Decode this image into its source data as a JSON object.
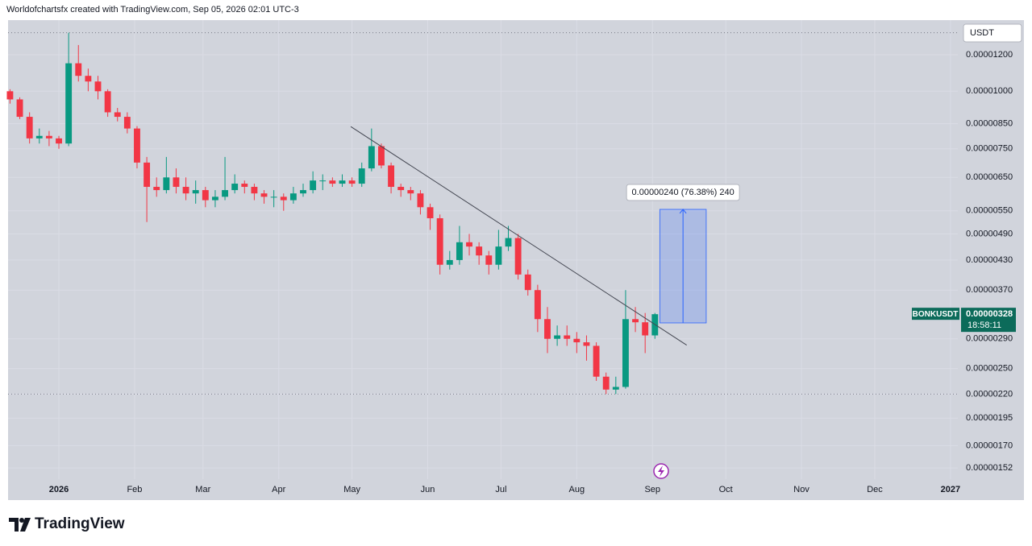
{
  "chart_data": {
    "type": "candlestick",
    "title": "Worldofchartsfx created with TradingView.com, Sep 05, 2026 02:01 UTC-3",
    "currency": "USDT",
    "brand": "TradingView",
    "log_scale": true,
    "grid": true,
    "up_color": "#089981",
    "down_color": "#f23645",
    "xlim": [
      -20.8,
      368
    ],
    "ylim": [
      1.3e-06,
      1.427e-05
    ],
    "xticks": [
      {
        "value": 0,
        "label": "2026"
      },
      {
        "value": 31,
        "label": "Feb"
      },
      {
        "value": 59,
        "label": "Mar"
      },
      {
        "value": 90,
        "label": "Apr"
      },
      {
        "value": 120,
        "label": "May"
      },
      {
        "value": 151,
        "label": "Jun"
      },
      {
        "value": 181,
        "label": "Jul"
      },
      {
        "value": 212,
        "label": "Aug"
      },
      {
        "value": 243,
        "label": "Sep"
      },
      {
        "value": 273,
        "label": "Oct"
      },
      {
        "value": 304,
        "label": "Nov"
      },
      {
        "value": 334,
        "label": "Dec"
      },
      {
        "value": 365,
        "label": "2027"
      }
    ],
    "yticks": [
      {
        "value": 1.2e-05,
        "label": "0.00001200"
      },
      {
        "value": 1e-05,
        "label": "0.00001000"
      },
      {
        "value": 8.5e-06,
        "label": "0.00000850"
      },
      {
        "value": 7.5e-06,
        "label": "0.00000750"
      },
      {
        "value": 6.5e-06,
        "label": "0.00000650"
      },
      {
        "value": 5.5e-06,
        "label": "0.00000550"
      },
      {
        "value": 4.9e-06,
        "label": "0.00000490"
      },
      {
        "value": 4.3e-06,
        "label": "0.00000430"
      },
      {
        "value": 3.7e-06,
        "label": "0.00000370"
      },
      {
        "value": 2.9e-06,
        "label": "0.00000290"
      },
      {
        "value": 2.5e-06,
        "label": "0.00000250"
      },
      {
        "value": 2.2e-06,
        "label": "0.00000220"
      },
      {
        "value": 1.95e-06,
        "label": "0.00000195"
      },
      {
        "value": 1.7e-06,
        "label": "0.00000170"
      },
      {
        "value": 1.52e-06,
        "label": "0.00000152"
      }
    ],
    "candles": {
      "x": [
        -20,
        -16,
        -12,
        -8,
        -4,
        0,
        4,
        8,
        12,
        16,
        20,
        24,
        28,
        32,
        36,
        40,
        44,
        48,
        52,
        56,
        60,
        64,
        68,
        72,
        76,
        80,
        84,
        88,
        92,
        96,
        100,
        104,
        108,
        112,
        116,
        120,
        124,
        128,
        132,
        136,
        140,
        144,
        148,
        152,
        156,
        160,
        164,
        168,
        172,
        176,
        180,
        184,
        188,
        192,
        196,
        200,
        204,
        208,
        212,
        216,
        220,
        224,
        228,
        232,
        236,
        240,
        244
      ],
      "open": [
        1e-05,
        9.6e-06,
        8.8e-06,
        7.9e-06,
        8e-06,
        7.9e-06,
        7.7e-06,
        1.15e-05,
        1.08e-05,
        1.05e-05,
        1e-05,
        9e-06,
        8.8e-06,
        8.3e-06,
        7e-06,
        6.2e-06,
        6.1e-06,
        6.5e-06,
        6.2e-06,
        6e-06,
        6.1e-06,
        5.8e-06,
        5.9e-06,
        6.1e-06,
        6.3e-06,
        6.2e-06,
        6e-06,
        5.9e-06,
        5.9e-06,
        5.8e-06,
        6e-06,
        6.1e-06,
        6.4e-06,
        6.4e-06,
        6.3e-06,
        6.4e-06,
        6.3e-06,
        6.8e-06,
        7.6e-06,
        6.9e-06,
        6.2e-06,
        6.1e-06,
        6e-06,
        5.6e-06,
        5.3e-06,
        4.2e-06,
        4.3e-06,
        4.7e-06,
        4.6e-06,
        4.4e-06,
        4.2e-06,
        4.6e-06,
        4.8e-06,
        4e-06,
        3.7e-06,
        3.2e-06,
        2.9e-06,
        2.95e-06,
        2.9e-06,
        2.85e-06,
        2.8e-06,
        2.4e-06,
        2.25e-06,
        2.28e-06,
        3.2e-06,
        3.15e-06,
        2.95e-06
      ],
      "high": [
        1.01e-05,
        9.7e-06,
        9e-06,
        8.3e-06,
        8.2e-06,
        8e-06,
        1.34e-05,
        1.26e-05,
        1.12e-05,
        1.08e-05,
        1.01e-05,
        9.2e-06,
        9e-06,
        8.4e-06,
        7.2e-06,
        6.5e-06,
        7.2e-06,
        6.8e-06,
        6.5e-06,
        6.4e-06,
        6.2e-06,
        6.1e-06,
        7.2e-06,
        6.6e-06,
        6.4e-06,
        6.3e-06,
        6.1e-06,
        6.1e-06,
        6e-06,
        6.2e-06,
        6.3e-06,
        6.7e-06,
        6.6e-06,
        6.5e-06,
        6.6e-06,
        6.5e-06,
        7e-06,
        8.3e-06,
        7.7e-06,
        7e-06,
        6.3e-06,
        6.2e-06,
        6.1e-06,
        5.7e-06,
        5.4e-06,
        4.5e-06,
        5.1e-06,
        4.9e-06,
        4.7e-06,
        4.5e-06,
        5e-06,
        5.1e-06,
        4.9e-06,
        4.1e-06,
        3.8e-06,
        3.4e-06,
        3.1e-06,
        3.1e-06,
        3e-06,
        2.95e-06,
        2.85e-06,
        2.45e-06,
        2.4e-06,
        3.7e-06,
        3.4e-06,
        3.3e-06,
        3.3e-06
      ],
      "low": [
        9.4e-06,
        8.7e-06,
        7.7e-06,
        7.7e-06,
        7.6e-06,
        7.5e-06,
        7.6e-06,
        1.05e-05,
        1e-05,
        9.6e-06,
        8.8e-06,
        8.6e-06,
        8.1e-06,
        6.8e-06,
        5.2e-06,
        5.9e-06,
        6e-06,
        6e-06,
        5.8e-06,
        5.7e-06,
        5.6e-06,
        5.6e-06,
        5.8e-06,
        6e-06,
        6e-06,
        5.8e-06,
        5.7e-06,
        5.6e-06,
        5.5e-06,
        5.7e-06,
        5.9e-06,
        6e-06,
        6.1e-06,
        6.2e-06,
        6.2e-06,
        6.2e-06,
        6.2e-06,
        6.7e-06,
        6.8e-06,
        6e-06,
        5.9e-06,
        5.8e-06,
        5.4e-06,
        5e-06,
        4e-06,
        4.1e-06,
        4.2e-06,
        4.4e-06,
        4.2e-06,
        4e-06,
        4.1e-06,
        4.5e-06,
        3.9e-06,
        3.6e-06,
        3e-06,
        2.7e-06,
        2.8e-06,
        2.8e-06,
        2.7e-06,
        2.6e-06,
        2.35e-06,
        2.2e-06,
        2.2e-06,
        2.26e-06,
        3e-06,
        2.7e-06,
        2.9e-06
      ],
      "close": [
        9.6e-06,
        8.8e-06,
        7.9e-06,
        8e-06,
        7.9e-06,
        7.7e-06,
        1.15e-05,
        1.08e-05,
        1.05e-05,
        1e-05,
        9e-06,
        8.8e-06,
        8.3e-06,
        7e-06,
        6.2e-06,
        6.1e-06,
        6.5e-06,
        6.2e-06,
        6e-06,
        6.1e-06,
        5.8e-06,
        5.9e-06,
        6.1e-06,
        6.3e-06,
        6.2e-06,
        6e-06,
        5.9e-06,
        5.9e-06,
        5.8e-06,
        6e-06,
        6.1e-06,
        6.4e-06,
        6.4e-06,
        6.3e-06,
        6.4e-06,
        6.3e-06,
        6.8e-06,
        7.6e-06,
        6.9e-06,
        6.2e-06,
        6.1e-06,
        6e-06,
        5.6e-06,
        5.3e-06,
        4.2e-06,
        4.3e-06,
        4.7e-06,
        4.6e-06,
        4.4e-06,
        4.2e-06,
        4.6e-06,
        4.8e-06,
        4e-06,
        3.7e-06,
        3.2e-06,
        2.9e-06,
        2.95e-06,
        2.9e-06,
        2.85e-06,
        2.8e-06,
        2.4e-06,
        2.25e-06,
        2.28e-06,
        3.2e-06,
        3.15e-06,
        2.95e-06,
        3.28e-06
      ]
    },
    "trendline": {
      "x": [
        119.5,
        257
      ],
      "y": [
        8.38e-06,
        2.81e-06
      ]
    },
    "measure": {
      "x": [
        246,
        265
      ],
      "y": [
        3.14e-06,
        5.54e-06
      ],
      "label": "0.00000240 (76.38%) 240"
    },
    "price_tag": {
      "symbol": "BONKUSDT",
      "value": 3.28e-06,
      "label": "0.00000328",
      "countdown": "18:58:11"
    }
  }
}
